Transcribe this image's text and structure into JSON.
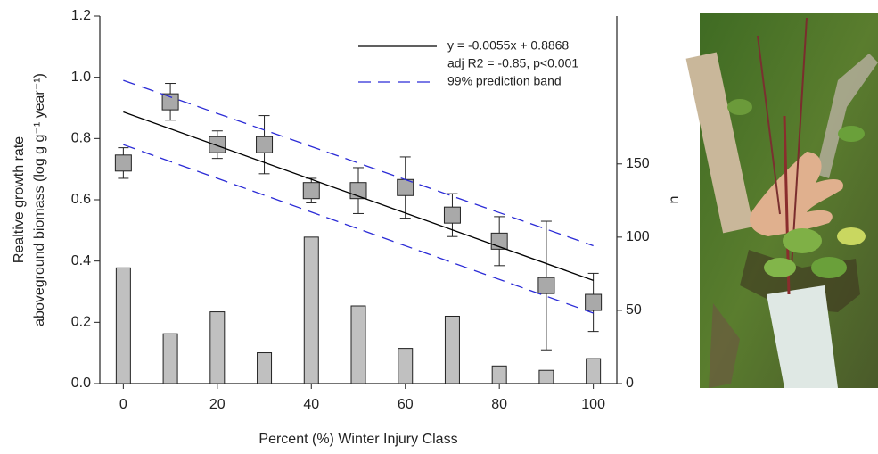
{
  "chart_data": {
    "type": "combo",
    "xlabel": "Percent (%) Winter Injury Class",
    "ylabel": [
      "Realtive growth rate",
      "aboveground biomass (log g g⁻¹ year⁻¹)"
    ],
    "y2label": "n",
    "xlim": [
      -5,
      105
    ],
    "xticks": [
      0,
      20,
      40,
      60,
      80,
      100
    ],
    "ylim": [
      0,
      1.2
    ],
    "yticks": [
      {
        "value": 0,
        "label": "0.0"
      },
      0.2,
      0.4,
      0.6,
      0.8,
      {
        "value": 1,
        "label": "1.0"
      },
      1.2
    ],
    "y2lim": [
      0,
      251
    ],
    "y2ticks": [
      0,
      50,
      100,
      150
    ],
    "annotation": "adj R2 = -0.85, p<0.001",
    "series": [
      {
        "kind": "bar",
        "axis": "y2",
        "color": "#c0c0c0",
        "x": [
          0,
          10,
          20,
          30,
          40,
          50,
          60,
          70,
          80,
          90,
          100
        ],
        "values": [
          79,
          34,
          49,
          21,
          100,
          53,
          24,
          46,
          12,
          9,
          17
        ]
      },
      {
        "kind": "points",
        "color": "#a9a9a9",
        "x": [
          0,
          10,
          20,
          30,
          40,
          50,
          60,
          70,
          80,
          90,
          100
        ],
        "values": [
          0.72,
          0.92,
          0.78,
          0.78,
          0.63,
          0.63,
          0.64,
          0.55,
          0.465,
          0.32,
          0.265
        ],
        "errors": [
          0.05,
          0.06,
          0.045,
          0.095,
          0.04,
          0.075,
          0.1,
          0.07,
          0.08,
          0.21,
          0.095
        ]
      },
      {
        "kind": "line",
        "name": "y = -0.0055x + 0.8868",
        "color": "#000000",
        "dash": false,
        "x": [
          0,
          100
        ],
        "values": [
          0.8868,
          0.3368
        ]
      },
      {
        "kind": "line",
        "name": "99% prediction band",
        "color": "#2b2bd6",
        "dash": true,
        "x": [
          0,
          100
        ],
        "values": [
          0.99,
          0.45
        ]
      },
      {
        "kind": "line",
        "color": "#2b2bd6",
        "dash": true,
        "x": [
          0,
          100
        ],
        "values": [
          0.78,
          0.23
        ]
      }
    ]
  }
}
